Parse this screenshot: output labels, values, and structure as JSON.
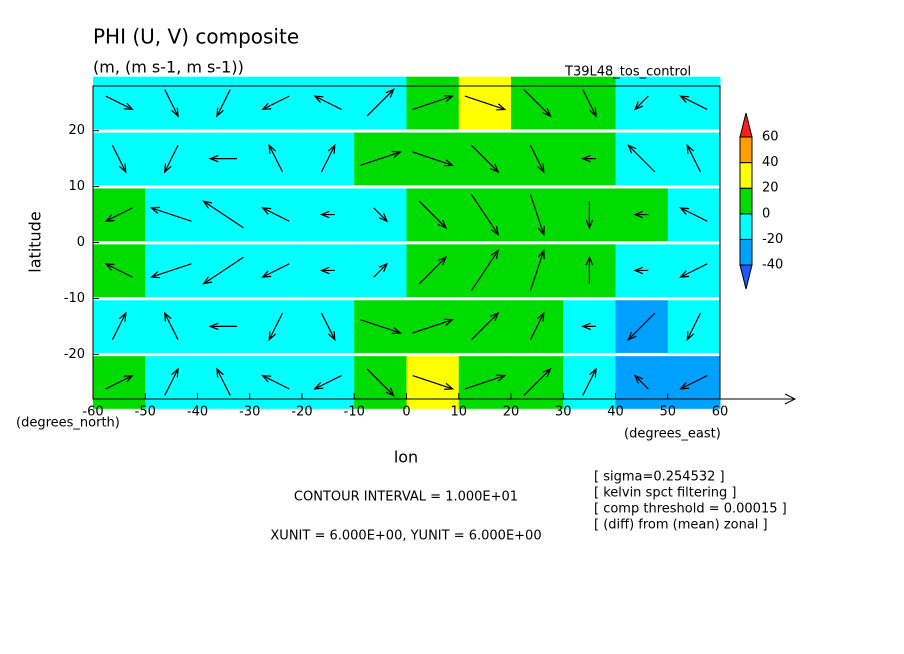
{
  "chart_data": {
    "type": "contour-vector",
    "title": "PHI (U, V) composite",
    "subtitle": "(m, (m s-1, m s-1))",
    "run": "T39L48_tos_control",
    "ylabel": "latitude",
    "xlabel": "lon",
    "ylabel_unit": "(degrees_north)",
    "xlabel_unit": "(degrees_east)",
    "contour_note": "CONTOUR INTERVAL = 1.000E+01",
    "unit_note": "XUNIT = 6.000E+00, YUNIT = 6.000E+00",
    "notes": [
      "[ sigma=0.254532 ]",
      "[ kelvin spct filtering ]",
      "[ comp threshold = 0.00015 ]",
      "[ (diff) from (mean) zonal ]"
    ],
    "xlim": [
      -60,
      60
    ],
    "ylim": [
      -28,
      28
    ],
    "xticks": [
      -60,
      -50,
      -40,
      -30,
      -20,
      -10,
      0,
      10,
      20,
      30,
      40,
      50,
      60
    ],
    "yticks": [
      -20,
      -10,
      0,
      10,
      20
    ],
    "levels": [
      -40,
      -20,
      0,
      20,
      40,
      60
    ],
    "colors": [
      "#1e5aff",
      "#00a0ff",
      "#00ffff",
      "#00dc00",
      "#ffff00",
      "#ffa000",
      "#ff1e1e"
    ],
    "lon": [
      -55,
      -45,
      -35,
      -25,
      -15,
      -5,
      5,
      15,
      25,
      35,
      45,
      55
    ],
    "lat": [
      25,
      15,
      5,
      -5,
      -15,
      -25
    ],
    "field": [
      [
        -5,
        -10,
        -5,
        -10,
        -20,
        -10,
        0,
        25,
        15,
        5,
        -5,
        -15
      ],
      [
        -10,
        -15,
        -15,
        -10,
        -10,
        5,
        10,
        10,
        5,
        0,
        -10,
        -15
      ],
      [
        5,
        -10,
        -10,
        -10,
        -15,
        -5,
        10,
        10,
        5,
        5,
        0,
        -5
      ],
      [
        0,
        -5,
        -10,
        -10,
        -15,
        -5,
        5,
        10,
        10,
        5,
        -5,
        -10
      ],
      [
        -5,
        -15,
        -15,
        -10,
        -5,
        5,
        10,
        10,
        0,
        -15,
        -25,
        -20
      ],
      [
        0,
        -10,
        -5,
        -5,
        -5,
        5,
        25,
        15,
        5,
        -15,
        -25,
        -35
      ]
    ],
    "u": [
      [
        4,
        2,
        -2,
        -4,
        -4,
        4,
        6,
        6,
        4,
        2,
        -2,
        -4
      ],
      [
        2,
        -2,
        -4,
        -2,
        2,
        6,
        6,
        4,
        2,
        -2,
        -4,
        -2
      ],
      [
        -4,
        -6,
        -6,
        -4,
        -2,
        2,
        4,
        4,
        2,
        0,
        -2,
        -4
      ],
      [
        -4,
        -6,
        -6,
        -4,
        -2,
        2,
        4,
        4,
        2,
        0,
        -2,
        -4
      ],
      [
        2,
        -2,
        -4,
        -2,
        2,
        6,
        6,
        4,
        2,
        -2,
        -4,
        -2
      ],
      [
        4,
        2,
        -2,
        -4,
        -4,
        4,
        6,
        6,
        4,
        2,
        -2,
        -4
      ]
    ],
    "v": [
      [
        -2,
        -4,
        -4,
        -2,
        2,
        4,
        2,
        -2,
        -4,
        -4,
        -2,
        2
      ],
      [
        -4,
        -4,
        0,
        4,
        4,
        2,
        -2,
        -4,
        -4,
        0,
        4,
        4
      ],
      [
        -2,
        2,
        4,
        2,
        0,
        -2,
        -4,
        -6,
        -6,
        -4,
        0,
        2
      ],
      [
        2,
        -2,
        -4,
        -2,
        0,
        2,
        4,
        6,
        6,
        4,
        0,
        -2
      ],
      [
        4,
        4,
        0,
        -4,
        -4,
        -2,
        2,
        4,
        4,
        0,
        -4,
        -4
      ],
      [
        2,
        4,
        4,
        2,
        -2,
        -4,
        -2,
        2,
        4,
        4,
        2,
        -2
      ]
    ]
  }
}
